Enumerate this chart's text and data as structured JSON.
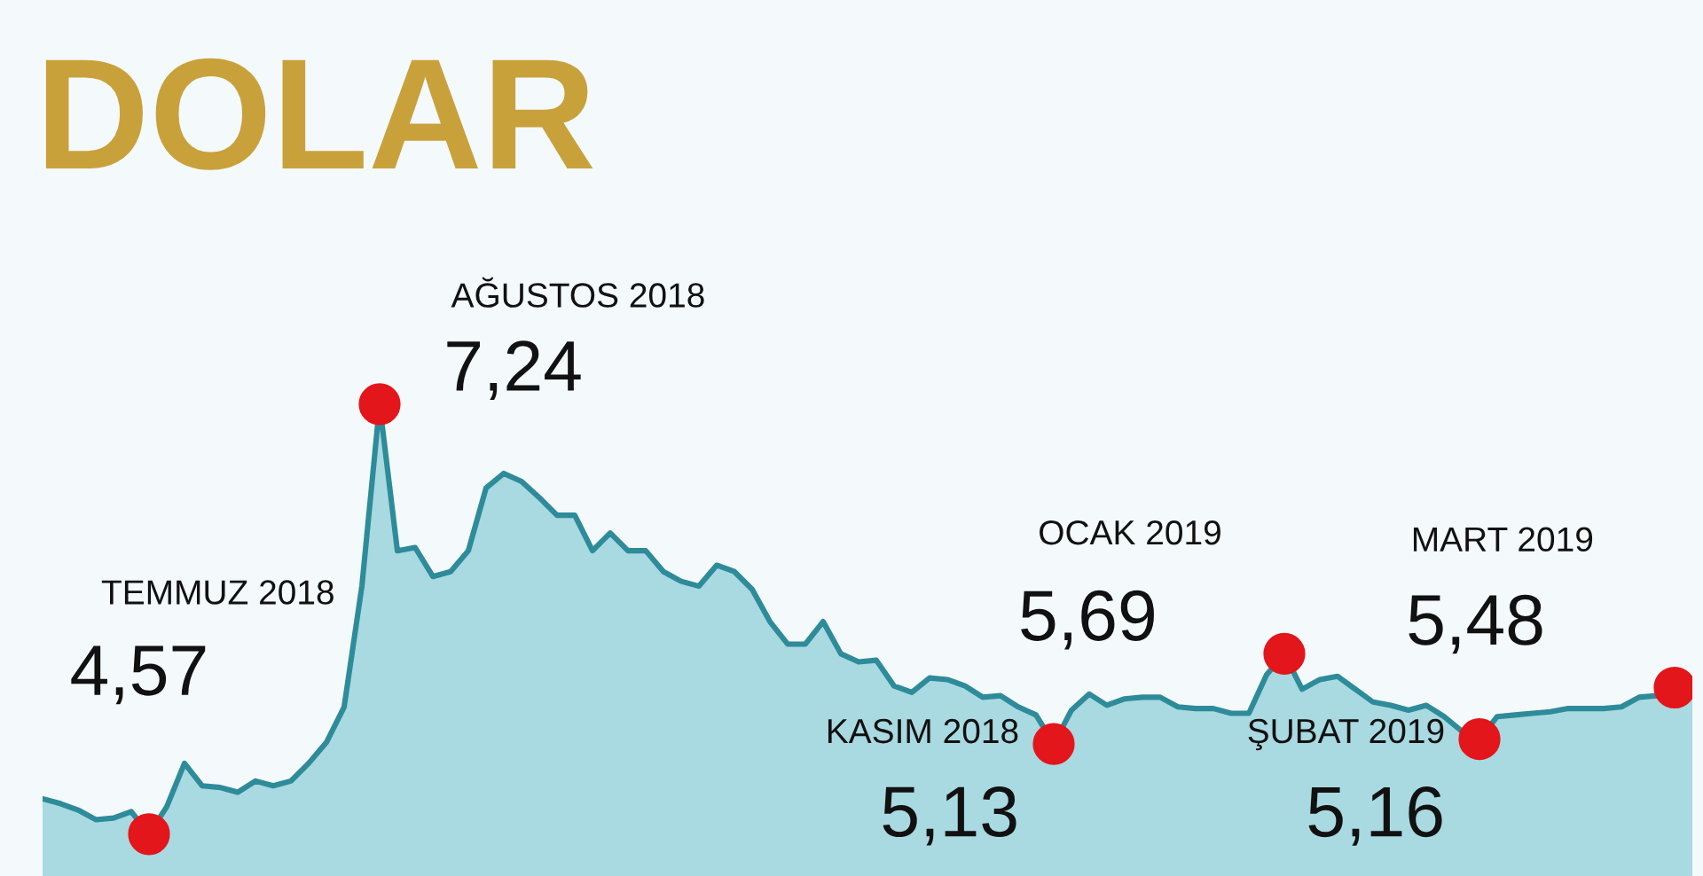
{
  "chart_data": {
    "type": "area",
    "title": "DOLAR",
    "categories": [
      null,
      null,
      null,
      null,
      null,
      null,
      null,
      null,
      null,
      null,
      null,
      null,
      null,
      null,
      null,
      null,
      null,
      null,
      null,
      null,
      null,
      null,
      null,
      null,
      null,
      null,
      null,
      null,
      null,
      null,
      null,
      null,
      null,
      null,
      null,
      null,
      null,
      null,
      null,
      null,
      null,
      null,
      null,
      null,
      null,
      null,
      null,
      null,
      null,
      null,
      null,
      null,
      null,
      null,
      null,
      null,
      null,
      null,
      null,
      null,
      null,
      null,
      null,
      null,
      null,
      null,
      null,
      null,
      null,
      null,
      null,
      null,
      null,
      null,
      null,
      null,
      null,
      null,
      null,
      null,
      null,
      null,
      null,
      null,
      null,
      null,
      null,
      null,
      null,
      null,
      null,
      null,
      null,
      null
    ],
    "series": [
      {
        "color": "#2e8b9a",
        "values": [
          4.79,
          4.76,
          4.72,
          4.66,
          4.67,
          4.71,
          4.57,
          4.74,
          5.01,
          4.87,
          4.86,
          4.83,
          4.9,
          4.87,
          4.9,
          5.01,
          5.14,
          5.36,
          6.11,
          7.24,
          6.33,
          6.35,
          6.17,
          6.2,
          6.33,
          6.72,
          6.81,
          6.76,
          6.66,
          6.55,
          6.55,
          6.33,
          6.44,
          6.33,
          6.33,
          6.2,
          6.14,
          6.11,
          6.24,
          6.2,
          6.09,
          5.89,
          5.75,
          5.75,
          5.89,
          5.69,
          5.64,
          5.65,
          5.49,
          5.45,
          5.54,
          5.53,
          5.49,
          5.42,
          5.43,
          5.36,
          5.31,
          5.13,
          5.34,
          5.44,
          5.37,
          5.41,
          5.42,
          5.42,
          5.36,
          5.35,
          5.35,
          5.32,
          5.32,
          5.56,
          5.69,
          5.47,
          5.53,
          5.55,
          5.47,
          5.39,
          5.37,
          5.34,
          5.37,
          5.3,
          5.21,
          5.16,
          5.3,
          5.31,
          5.32,
          5.33,
          5.35,
          5.35,
          5.35,
          5.36,
          5.42,
          5.43,
          5.48,
          5.51
        ],
        "value_labels": [
          null,
          null,
          null,
          null,
          null,
          null,
          "4,57",
          null,
          null,
          null,
          null,
          null,
          null,
          null,
          null,
          null,
          null,
          null,
          null,
          "7,24",
          null,
          null,
          null,
          null,
          null,
          null,
          null,
          null,
          null,
          null,
          null,
          null,
          null,
          null,
          null,
          null,
          null,
          null,
          null,
          null,
          null,
          null,
          null,
          null,
          null,
          null,
          null,
          null,
          null,
          null,
          null,
          null,
          null,
          null,
          null,
          null,
          null,
          "5,13",
          null,
          null,
          null,
          null,
          null,
          null,
          null,
          null,
          null,
          null,
          null,
          null,
          "5,69",
          null,
          null,
          null,
          null,
          null,
          null,
          null,
          null,
          null,
          null,
          "5,16",
          null,
          null,
          null,
          null,
          null,
          null,
          null,
          null,
          null,
          null,
          "5,48",
          null
        ]
      }
    ],
    "annotations": [
      "TEMMUZ 2018",
      "AĞUSTOS 2018",
      "KASIM 2018",
      "OCAK 2019",
      "ŞUBAT 2019",
      "MART 2019"
    ],
    "ylim": [
      4.31,
      9.75
    ],
    "legend": false
  }
}
